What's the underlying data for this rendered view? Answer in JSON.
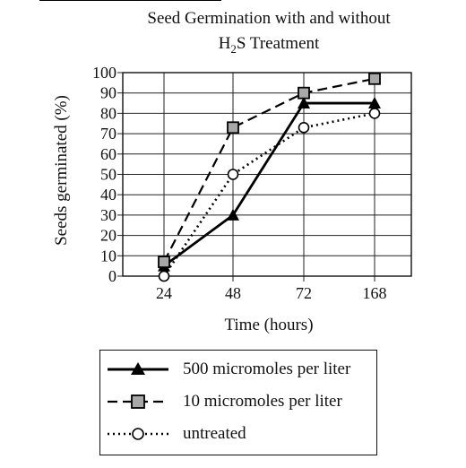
{
  "title": {
    "line1": "Seed Germination with and without",
    "line2_pre": "H",
    "line2_sub": "2",
    "line2_post": "S Treatment"
  },
  "chart_data": {
    "type": "line",
    "title": "Seed Germination with and without H2S Treatment",
    "xlabel": "Time (hours)",
    "ylabel": "Seeds germinated (%)",
    "categories": [
      "24",
      "48",
      "72",
      "168"
    ],
    "ylim": [
      0,
      100
    ],
    "yticks": [
      0,
      10,
      20,
      30,
      40,
      50,
      60,
      70,
      80,
      90,
      100
    ],
    "grid": true,
    "legend_position": "bottom",
    "series": [
      {
        "name": "500 micromoles per liter",
        "values": [
          5,
          30,
          85,
          85
        ],
        "marker": "triangle-filled",
        "line": "solid"
      },
      {
        "name": "10 micromoles per liter",
        "values": [
          7,
          73,
          90,
          97
        ],
        "marker": "square-gray",
        "line": "dashed"
      },
      {
        "name": "untreated",
        "values": [
          0,
          50,
          73,
          80
        ],
        "marker": "circle-open",
        "line": "dotted"
      }
    ]
  }
}
